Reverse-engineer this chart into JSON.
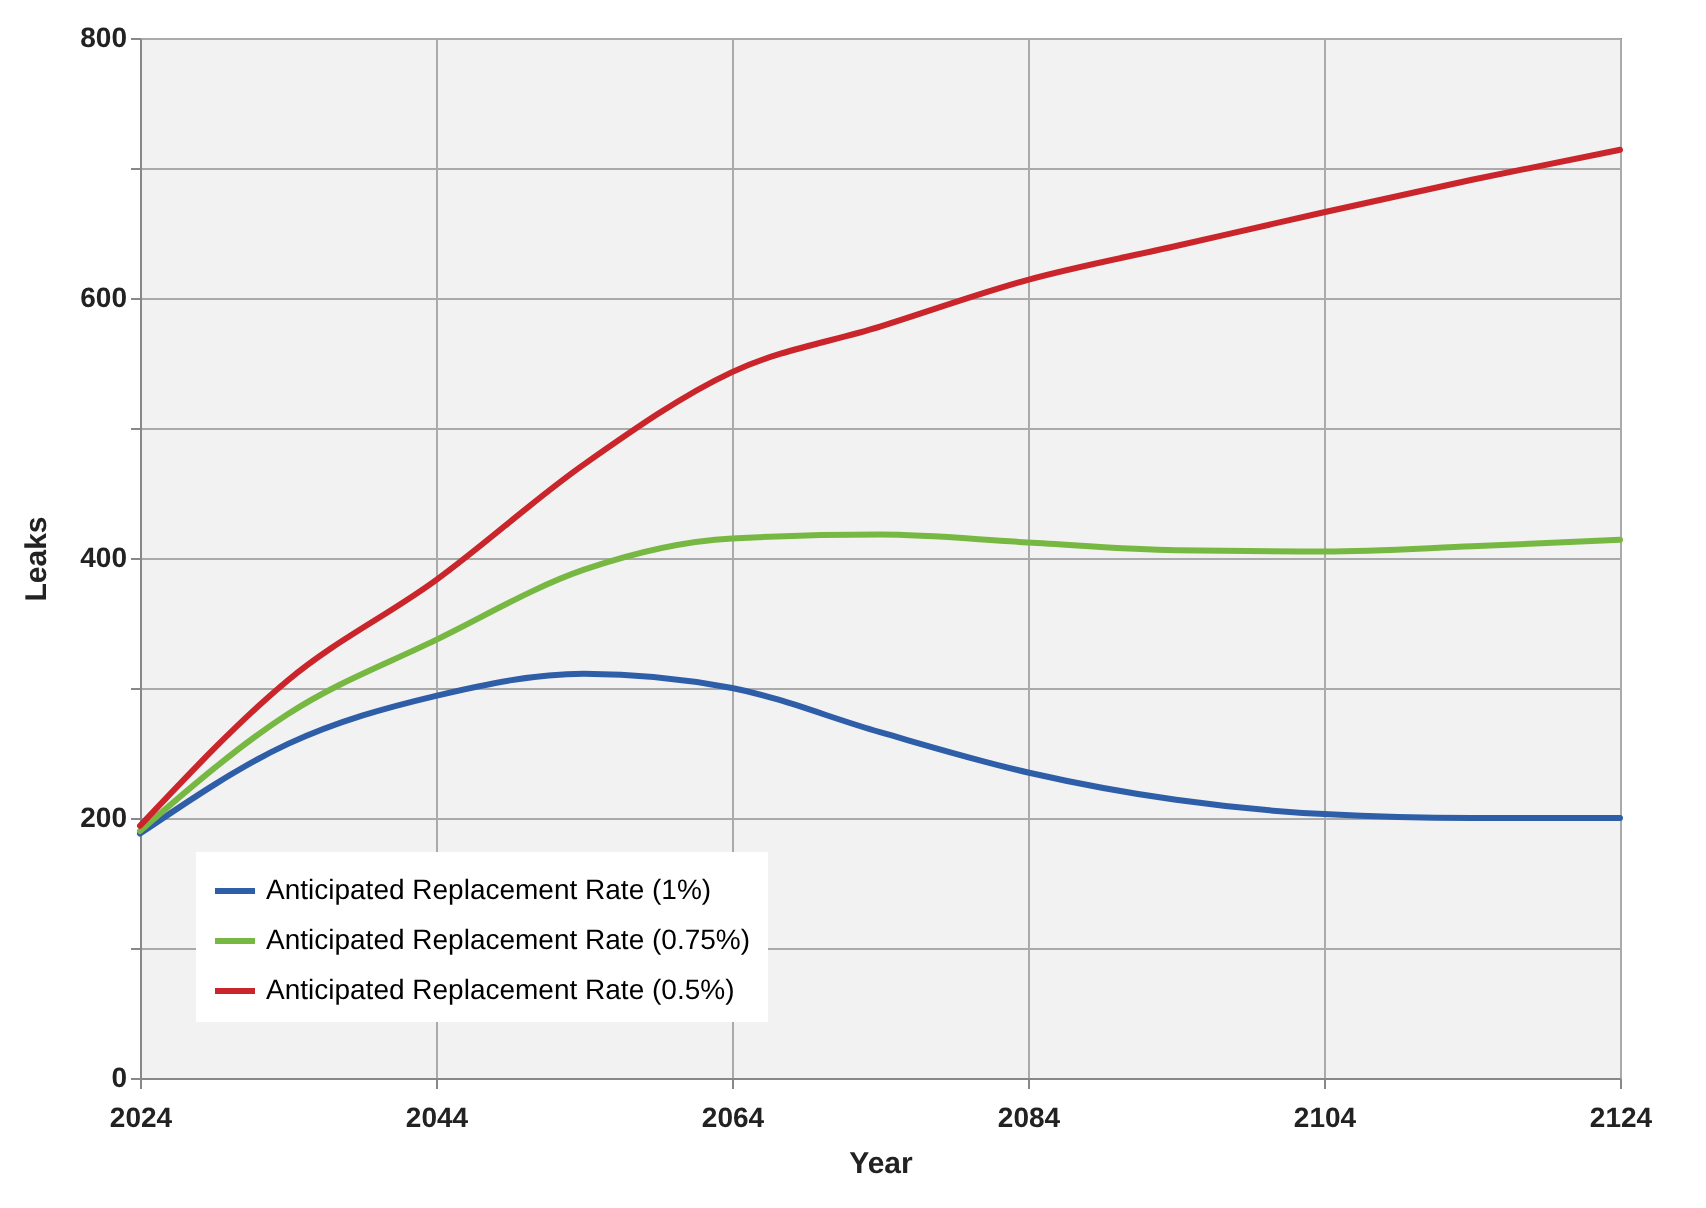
{
  "chart_data": {
    "type": "line",
    "xlabel": "Year",
    "ylabel": "Leaks",
    "x": [
      2024,
      2034,
      2044,
      2054,
      2064,
      2074,
      2084,
      2094,
      2104,
      2114,
      2124
    ],
    "series": [
      {
        "name": "Anticipated Replacement Rate (1%)",
        "color": "#2e5ea8",
        "values": [
          188,
          257,
          294,
          311,
          300,
          266,
          235,
          214,
          203,
          200,
          200
        ]
      },
      {
        "name": "Anticipated Replacement Rate (0.75%)",
        "color": "#77b843",
        "values": [
          190,
          280,
          337,
          391,
          415,
          418,
          412,
          406,
          405,
          409,
          414
        ]
      },
      {
        "name": "Anticipated Replacement Rate (0.5%)",
        "color": "#c9252b",
        "values": [
          194,
          306,
          383,
          472,
          543,
          578,
          614,
          640,
          666,
          691,
          714
        ]
      }
    ],
    "xlim": [
      2024,
      2124
    ],
    "xticks": [
      2024,
      2044,
      2064,
      2084,
      2104,
      2124
    ],
    "ylim": [
      0,
      800
    ],
    "yticks": [
      0,
      {
        "value": 100,
        "label": null
      },
      200,
      {
        "value": 300,
        "label": null
      },
      400,
      {
        "value": 500,
        "label": null
      },
      600,
      {
        "value": 700,
        "label": null
      },
      800
    ],
    "grid": true,
    "legend": "bottom left",
    "marker": "none",
    "line_style": "solid"
  }
}
